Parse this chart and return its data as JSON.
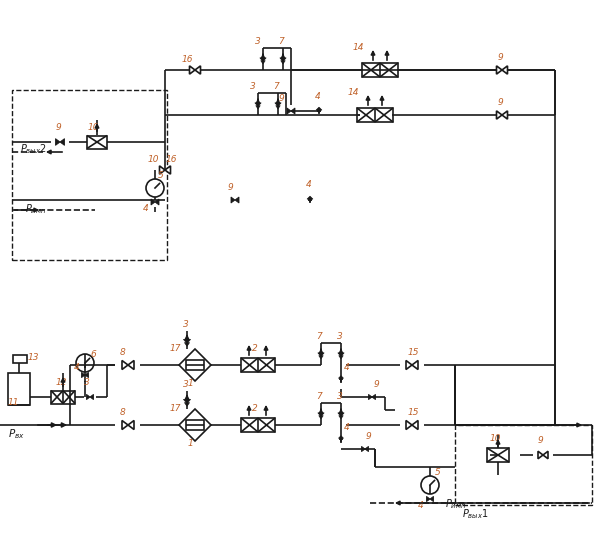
{
  "bg": "#ffffff",
  "lc": "#1a1a1a",
  "oc": "#c0622a",
  "lw": 1.2,
  "lw_thin": 0.8
}
